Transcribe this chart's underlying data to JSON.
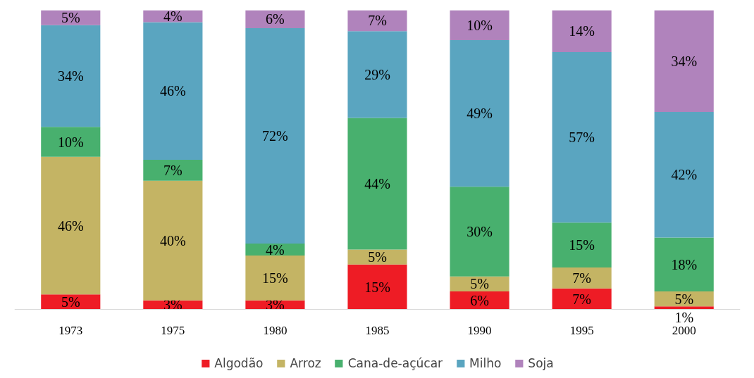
{
  "chart_data": {
    "type": "bar",
    "stacked": true,
    "categories": [
      "1973",
      "1975",
      "1980",
      "1985",
      "1990",
      "1995",
      "2000"
    ],
    "series": [
      {
        "name": "Algodão",
        "color": "#ee1c25",
        "values": [
          5,
          3,
          3,
          15,
          6,
          7,
          1
        ],
        "value_labels": [
          "5%",
          "3%",
          "3%",
          "15%",
          "6%",
          "7%",
          "1%"
        ]
      },
      {
        "name": "Arroz",
        "color": "#c4b464",
        "values": [
          46,
          40,
          15,
          5,
          5,
          7,
          5
        ],
        "value_labels": [
          "46%",
          "40%",
          "15%",
          "5%",
          "5%",
          "7%",
          "5%"
        ]
      },
      {
        "name": "Cana-de-açúcar",
        "color": "#48b06e",
        "values": [
          10,
          7,
          4,
          44,
          30,
          15,
          18
        ],
        "value_labels": [
          "10%",
          "7%",
          "4%",
          "44%",
          "30%",
          "15%",
          "18%"
        ]
      },
      {
        "name": "Milho",
        "color": "#5aa5c0",
        "values": [
          34,
          46,
          72,
          29,
          49,
          57,
          42
        ],
        "value_labels": [
          "34%",
          "46%",
          "72%",
          "29%",
          "49%",
          "57%",
          "42%"
        ]
      },
      {
        "name": "Soja",
        "color": "#b083bc",
        "values": [
          5,
          4,
          6,
          7,
          10,
          14,
          34
        ],
        "value_labels": [
          "5%",
          "4%",
          "6%",
          "7%",
          "10%",
          "14%",
          "34%"
        ]
      }
    ],
    "legend": "bottom"
  }
}
